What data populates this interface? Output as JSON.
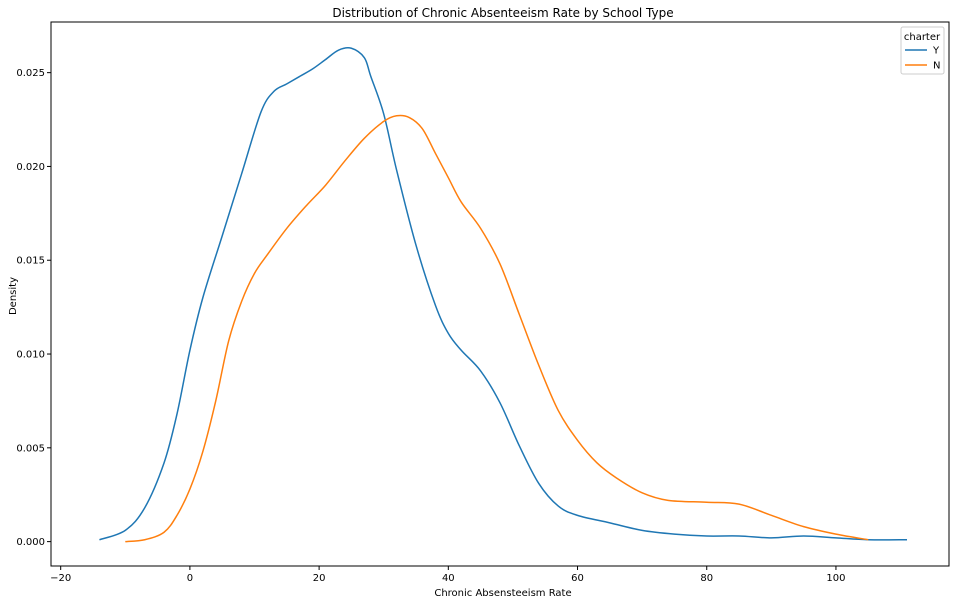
{
  "chart_data": {
    "type": "line",
    "title": "Distribution of Chronic Absenteeism Rate by School Type",
    "xlabel": "Chronic Absensteeism Rate",
    "ylabel": "Density",
    "xlim": [
      -21.5,
      117.5
    ],
    "ylim": [
      -0.0013,
      0.0277
    ],
    "xticks": [
      -20,
      0,
      20,
      40,
      60,
      80,
      100
    ],
    "xtick_labels": [
      "−20",
      "0",
      "20",
      "40",
      "60",
      "80",
      "100"
    ],
    "yticks": [
      0.0,
      0.005,
      0.01,
      0.015,
      0.02,
      0.025
    ],
    "ytick_labels": [
      "0.000",
      "0.005",
      "0.010",
      "0.015",
      "0.020",
      "0.025"
    ],
    "grid": false,
    "legend": {
      "title": "charter",
      "position": "top-right"
    },
    "series": [
      {
        "name": "Y",
        "color": "#1f77b4",
        "x": [
          -14,
          -10,
          -7,
          -4,
          -2,
          0,
          2,
          5,
          8,
          11,
          13,
          15,
          17,
          19,
          21,
          23,
          25,
          27,
          28,
          30,
          32,
          35,
          38,
          40,
          42,
          45,
          48,
          51,
          54,
          57,
          60,
          65,
          70,
          75,
          80,
          85,
          90,
          95,
          100,
          105,
          111
        ],
        "y": [
          0.0001,
          0.0006,
          0.0018,
          0.0042,
          0.0068,
          0.0102,
          0.013,
          0.0163,
          0.0196,
          0.0229,
          0.024,
          0.0244,
          0.0248,
          0.0252,
          0.0257,
          0.0262,
          0.0263,
          0.0258,
          0.0248,
          0.0228,
          0.0198,
          0.0158,
          0.0126,
          0.0111,
          0.0102,
          0.0091,
          0.0074,
          0.0051,
          0.0031,
          0.0019,
          0.0014,
          0.001,
          0.0006,
          0.0004,
          0.0003,
          0.0003,
          0.0002,
          0.0003,
          0.0002,
          0.0001,
          0.0001
        ]
      },
      {
        "name": "N",
        "color": "#ff7f0e",
        "x": [
          -10,
          -7,
          -4,
          -2,
          0,
          2,
          4,
          6,
          8,
          10,
          12,
          15,
          18,
          21,
          24,
          27,
          30,
          32,
          34,
          36,
          38,
          40,
          42,
          45,
          48,
          51,
          54,
          57,
          60,
          63,
          66,
          70,
          74,
          80,
          85,
          90,
          95,
          100,
          105
        ],
        "y": [
          0.0,
          0.0001,
          0.0005,
          0.0014,
          0.0028,
          0.0048,
          0.0075,
          0.0107,
          0.0128,
          0.0143,
          0.0153,
          0.0167,
          0.0179,
          0.019,
          0.0203,
          0.0215,
          0.0224,
          0.0227,
          0.0226,
          0.022,
          0.0207,
          0.0194,
          0.0181,
          0.0167,
          0.0148,
          0.0121,
          0.0094,
          0.007,
          0.0054,
          0.0042,
          0.0034,
          0.0026,
          0.0022,
          0.0021,
          0.002,
          0.0014,
          0.0008,
          0.0004,
          0.0001
        ]
      }
    ]
  }
}
